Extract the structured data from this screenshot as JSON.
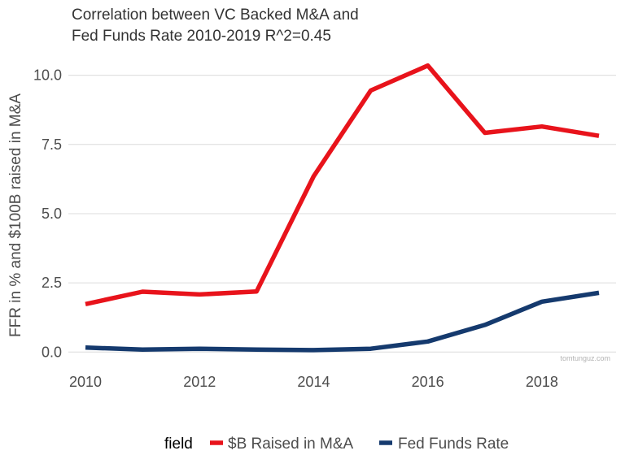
{
  "chart_data": {
    "type": "line",
    "title_line1": "Correlation between VC Backed M&A and",
    "title_line2": "Fed Funds Rate 2010-2019 R^2=0.45",
    "xlabel": "",
    "ylabel": "FFR in % and $100B raised in M&A",
    "x": [
      2010,
      2011,
      2012,
      2013,
      2014,
      2015,
      2016,
      2017,
      2018,
      2019
    ],
    "xlim": [
      2009.7,
      2019.3
    ],
    "ylim": [
      -0.55,
      10.9
    ],
    "x_ticks": [
      2010,
      2012,
      2014,
      2016,
      2018
    ],
    "x_tick_labels": [
      "2010",
      "2012",
      "2014",
      "2016",
      "2018"
    ],
    "y_ticks": [
      0,
      2.5,
      5,
      7.5,
      10
    ],
    "y_tick_labels": [
      "0.0",
      "2.5",
      "5.0",
      "7.5",
      "10.0"
    ],
    "grid": true,
    "legend_position": "bottom",
    "legend_title": "field",
    "series": [
      {
        "name": "$B Raised in M&A",
        "color": "#e8131b",
        "values": [
          1.73,
          2.18,
          2.08,
          2.19,
          6.35,
          9.45,
          10.35,
          7.92,
          8.15,
          7.81
        ]
      },
      {
        "name": "Fed Funds Rate",
        "color": "#153a6e",
        "values": [
          0.16,
          0.09,
          0.12,
          0.09,
          0.07,
          0.12,
          0.38,
          0.98,
          1.82,
          2.14
        ]
      }
    ],
    "watermark": "tomtunguz.com"
  }
}
